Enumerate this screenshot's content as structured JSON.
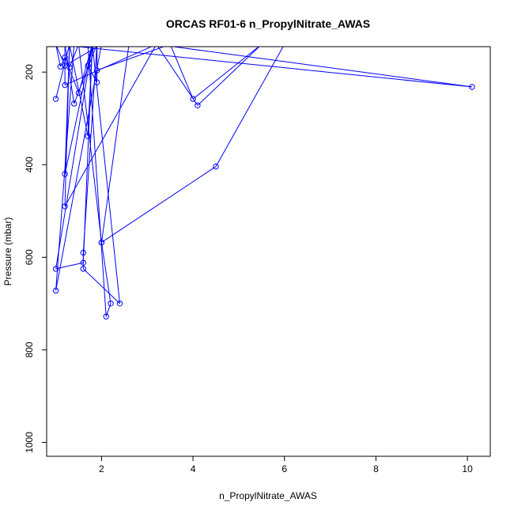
{
  "chart_data": {
    "type": "line",
    "title": "ORCAS RF01-6 n_PropylNitrate_AWAS",
    "xlabel": "n_PropylNitrate_AWAS",
    "ylabel": "Pressure (mbar)",
    "xlim": [
      0.8,
      10.5
    ],
    "ylim": [
      1030,
      145
    ],
    "y_reversed": true,
    "xticks": [
      2,
      4,
      6,
      8,
      10
    ],
    "yticks": [
      200,
      400,
      600,
      800,
      1000
    ],
    "grid": false,
    "legend": "none",
    "color": "#0000ff",
    "series": [
      {
        "points": [
          [
            1.0,
            258
          ],
          [
            1.3,
            140
          ],
          [
            1.2,
            420
          ],
          [
            1.8,
            140
          ],
          [
            1.5,
            245
          ],
          [
            1.2,
            168
          ],
          [
            1.1,
            188
          ],
          [
            1.0,
            140
          ],
          [
            1.8,
            140
          ],
          [
            1.0,
            625
          ],
          [
            1.6,
            612
          ],
          [
            1.8,
            140
          ],
          [
            1.7,
            338
          ],
          [
            1.3,
            140
          ],
          [
            1.2,
            490
          ],
          [
            3.2,
            140
          ],
          [
            1.2,
            228
          ],
          [
            1.2,
            140
          ],
          [
            1.4,
            268
          ],
          [
            1.9,
            140
          ],
          [
            1.6,
            590
          ],
          [
            1.6,
            625
          ],
          [
            2.4,
            700
          ],
          [
            1.8,
            140
          ],
          [
            1.7,
            186
          ],
          [
            1.9,
            222
          ],
          [
            1.9,
            140
          ],
          [
            1.9,
            196
          ],
          [
            3.5,
            140
          ],
          [
            4.0,
            258
          ],
          [
            5.5,
            140
          ],
          [
            4.1,
            272
          ],
          [
            3.2,
            140
          ],
          [
            10.1,
            232
          ],
          [
            1.0,
            140
          ],
          [
            1.2,
            186
          ],
          [
            2.0,
            140
          ],
          [
            1.0,
            672
          ],
          [
            1.4,
            140
          ],
          [
            2.6,
            140
          ],
          [
            2.0,
            568
          ],
          [
            2.2,
            700
          ],
          [
            2.1,
            728
          ],
          [
            1.7,
            140
          ],
          [
            6.0,
            140
          ],
          [
            4.5,
            404
          ],
          [
            2.0,
            568
          ],
          [
            1.5,
            140
          ],
          [
            1.3,
            190
          ]
        ]
      }
    ]
  }
}
